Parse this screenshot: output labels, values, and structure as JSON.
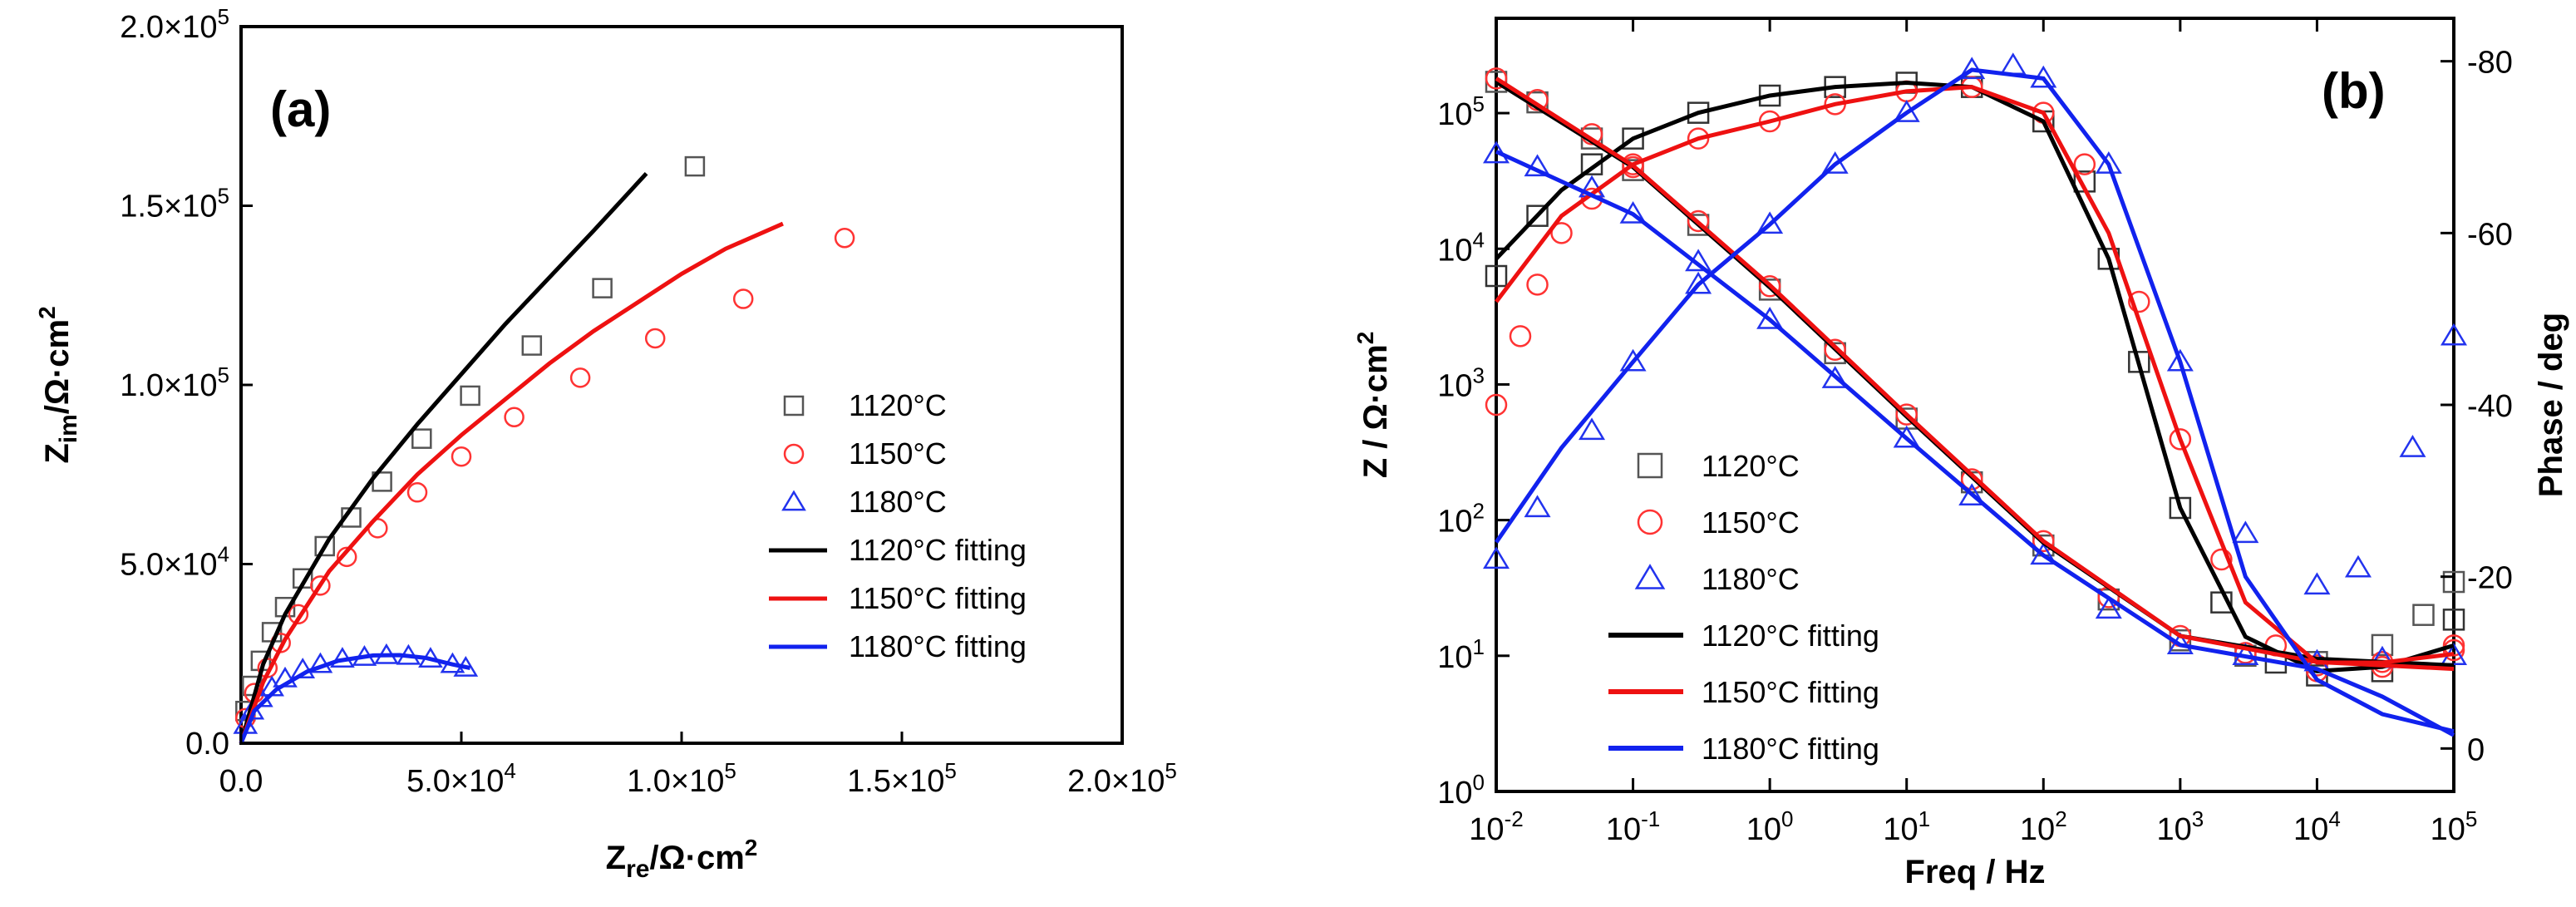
{
  "chart_data": [
    {
      "panel": "(a)",
      "type": "scatter",
      "title": "",
      "xlabel": "Zre/Ω·cm2",
      "ylabel": "Zim/Ω·cm2",
      "xlim": [
        0,
        200000
      ],
      "ylim": [
        0,
        200000
      ],
      "x_ticks": [
        {
          "value": 0,
          "label": "0.0"
        },
        {
          "value": 50000,
          "label": "5.0×10^4"
        },
        {
          "value": 100000,
          "label": "1.0×10^5"
        },
        {
          "value": 150000,
          "label": "1.5×10^5"
        },
        {
          "value": 200000,
          "label": "2.0×10^5"
        }
      ],
      "y_ticks": [
        {
          "value": 0,
          "label": "0.0"
        },
        {
          "value": 50000,
          "label": "5.0×10^4"
        },
        {
          "value": 100000,
          "label": "1.0×10^5"
        },
        {
          "value": 150000,
          "label": "1.5×10^5"
        },
        {
          "value": 200000,
          "label": "2.0×10^5"
        }
      ],
      "series": [
        {
          "name": "1120°C",
          "kind": "marker",
          "marker": "square",
          "color": "#555555",
          "x": [
            1000,
            2500,
            4500,
            7000,
            10000,
            14000,
            19000,
            25000,
            32000,
            41000,
            52000,
            66000,
            82000,
            103000
          ],
          "y": [
            9000,
            16000,
            23000,
            31000,
            38000,
            46000,
            55000,
            63000,
            73000,
            85000,
            97000,
            111000,
            127000,
            161000
          ]
        },
        {
          "name": "1150°C",
          "kind": "marker",
          "marker": "circle",
          "color": "#ff3333",
          "x": [
            1000,
            3000,
            6000,
            9000,
            13000,
            18000,
            24000,
            31000,
            40000,
            50000,
            62000,
            77000,
            94000,
            114000,
            137000
          ],
          "y": [
            7000,
            14000,
            21000,
            28000,
            36000,
            44000,
            52000,
            60000,
            70000,
            80000,
            91000,
            102000,
            113000,
            124000,
            141000
          ]
        },
        {
          "name": "1180°C",
          "kind": "marker",
          "marker": "triangle",
          "color": "#2233ee",
          "x": [
            1000,
            2500,
            4500,
            7000,
            10000,
            14000,
            18000,
            23000,
            28000,
            33000,
            38000,
            43000,
            48000,
            51000
          ],
          "y": [
            5000,
            9000,
            12500,
            15500,
            18000,
            20500,
            22000,
            23500,
            24000,
            24500,
            24300,
            23500,
            22000,
            21000
          ]
        },
        {
          "name": "1120°C fitting",
          "kind": "line",
          "color": "#000000",
          "x": [
            0,
            5000,
            10000,
            20000,
            30000,
            40000,
            50000,
            60000,
            70000,
            80000,
            92000
          ],
          "y": [
            0,
            22000,
            36000,
            57000,
            74000,
            89000,
            103000,
            117000,
            130000,
            143000,
            159000
          ]
        },
        {
          "name": "1150°C fitting",
          "kind": "line",
          "color": "#ee1111",
          "x": [
            0,
            5000,
            10000,
            20000,
            30000,
            40000,
            50000,
            60000,
            70000,
            80000,
            90000,
            100000,
            110000,
            123000
          ],
          "y": [
            0,
            17000,
            29000,
            48000,
            62000,
            75000,
            86000,
            96000,
            106000,
            115000,
            123000,
            131000,
            138000,
            145000
          ]
        },
        {
          "name": "1180°C fitting",
          "kind": "line",
          "color": "#1122ee",
          "x": [
            0,
            3000,
            8000,
            15000,
            22000,
            30000,
            36000,
            42000,
            48000,
            52000
          ],
          "y": [
            0,
            9000,
            15000,
            20000,
            23000,
            24500,
            24600,
            23800,
            22000,
            21000
          ]
        }
      ],
      "legend_entries": [
        "1120°C",
        "1150°C",
        "1180°C",
        "1120°C fitting",
        "1150°C fitting",
        "1180°C fitting"
      ],
      "legend_position": "right-middle"
    },
    {
      "panel": "(b)",
      "type": "scatter",
      "title": "",
      "xlabel": "Freq / Hz",
      "ylabel": "Z / Ω·cm2",
      "y2label": "Phase / deg",
      "xscale": "log",
      "yscale": "log",
      "xlim": [
        0.01,
        100000
      ],
      "ylim": [
        1,
        500000
      ],
      "y2lim": [
        5,
        -85
      ],
      "x_ticks": [
        {
          "value": 0.01,
          "base": "10",
          "exp": "-2"
        },
        {
          "value": 0.1,
          "base": "10",
          "exp": "-1"
        },
        {
          "value": 1,
          "base": "10",
          "exp": "0"
        },
        {
          "value": 10,
          "base": "10",
          "exp": "1"
        },
        {
          "value": 100,
          "base": "10",
          "exp": "2"
        },
        {
          "value": 1000,
          "base": "10",
          "exp": "3"
        },
        {
          "value": 10000,
          "base": "10",
          "exp": "4"
        },
        {
          "value": 100000,
          "base": "10",
          "exp": "5"
        }
      ],
      "y_ticks": [
        {
          "value": 1,
          "base": "10",
          "exp": "0"
        },
        {
          "value": 10,
          "base": "10",
          "exp": "1"
        },
        {
          "value": 100,
          "base": "10",
          "exp": "2"
        },
        {
          "value": 1000,
          "base": "10",
          "exp": "3"
        },
        {
          "value": 10000,
          "base": "10",
          "exp": "4"
        },
        {
          "value": 100000,
          "base": "10",
          "exp": "5"
        }
      ],
      "y2_ticks": [
        {
          "value": -80,
          "label": "-80"
        },
        {
          "value": -60,
          "label": "-60"
        },
        {
          "value": -40,
          "label": "-40"
        },
        {
          "value": -20,
          "label": "-20"
        },
        {
          "value": 0,
          "label": "0"
        }
      ],
      "series": [
        {
          "name": "1120°C",
          "kind": "marker",
          "marker": "square",
          "color": "#555555",
          "quantity": "modulus",
          "x": [
            0.01,
            0.02,
            0.05,
            0.1,
            0.3,
            1,
            3,
            10,
            30,
            100,
            300,
            1000,
            3000,
            10000,
            30000,
            60000,
            100000
          ],
          "y": [
            170000,
            120000,
            65000,
            38000,
            15000,
            5000,
            1700,
            560,
            190,
            65,
            26,
            13,
            10,
            9,
            12,
            20,
            35
          ]
        },
        {
          "name": "1120°C",
          "kind": "marker",
          "marker": "square",
          "color": "#333333",
          "quantity": "phase",
          "x": [
            0.01,
            0.02,
            0.05,
            0.1,
            0.3,
            1,
            3,
            10,
            30,
            100,
            200,
            300,
            500,
            1000,
            2000,
            5000,
            10000,
            30000,
            100000
          ],
          "y": [
            -55,
            -62,
            -68,
            -71,
            -74,
            -76,
            -77,
            -77.5,
            -77,
            -73,
            -66,
            -57,
            -45,
            -28,
            -17,
            -10,
            -8.5,
            -9,
            -15
          ]
        },
        {
          "name": "1150°C",
          "kind": "marker",
          "marker": "circle",
          "color": "#ff3333",
          "quantity": "modulus",
          "x": [
            0.01,
            0.02,
            0.05,
            0.1,
            0.3,
            1,
            3,
            10,
            30,
            100,
            300,
            1000,
            3000,
            10000,
            30000,
            100000
          ],
          "y": [
            180000,
            125000,
            70000,
            40000,
            16000,
            5300,
            1800,
            600,
            200,
            70,
            27,
            14,
            10.5,
            8.5,
            9,
            11
          ]
        },
        {
          "name": "1150°C",
          "kind": "marker",
          "marker": "circle",
          "color": "#ff3333",
          "quantity": "phase",
          "x": [
            0.01,
            0.015,
            0.02,
            0.03,
            0.05,
            0.1,
            0.3,
            1,
            3,
            10,
            30,
            100,
            200,
            500,
            1000,
            2000,
            5000,
            10000,
            30000,
            100000
          ],
          "y": [
            -40,
            -48,
            -54,
            -60,
            -64,
            -68,
            -71,
            -73,
            -75,
            -76.5,
            -77,
            -74,
            -68,
            -52,
            -36,
            -22,
            -12,
            -9,
            -9.5,
            -12
          ]
        },
        {
          "name": "1180°C",
          "kind": "marker",
          "marker": "triangle",
          "color": "#2233ee",
          "quantity": "modulus",
          "x": [
            0.01,
            0.02,
            0.05,
            0.1,
            0.3,
            1,
            3,
            10,
            30,
            100,
            300,
            1000,
            3000,
            10000,
            30000,
            100000
          ],
          "y": [
            50000,
            40000,
            28000,
            18000,
            8000,
            3000,
            1100,
            400,
            150,
            55,
            22,
            12,
            10,
            9,
            9.5,
            10
          ]
        },
        {
          "name": "1180°C",
          "kind": "marker",
          "marker": "triangle",
          "color": "#2233ee",
          "quantity": "phase",
          "x": [
            0.01,
            0.02,
            0.05,
            0.1,
            0.3,
            1,
            3,
            10,
            30,
            60,
            100,
            300,
            1000,
            3000,
            10000,
            20000,
            50000,
            100000
          ],
          "y": [
            -22,
            -28,
            -37,
            -45,
            -54,
            -61,
            -68,
            -74,
            -79,
            -79.5,
            -78,
            -68,
            -45,
            -25,
            -19,
            -21,
            -35,
            -48
          ]
        },
        {
          "name": "1120°C fitting",
          "kind": "line",
          "color": "#000000",
          "quantity": "modulus",
          "x": [
            0.01,
            0.1,
            1,
            10,
            100,
            1000,
            10000,
            100000
          ],
          "y": [
            170000,
            40000,
            5200,
            580,
            68,
            14,
            9.5,
            8.5
          ]
        },
        {
          "name": "1120°C fitting",
          "kind": "line",
          "color": "#000000",
          "quantity": "phase",
          "x": [
            0.01,
            0.03,
            0.1,
            0.3,
            1,
            3,
            10,
            30,
            100,
            300,
            1000,
            3000,
            10000,
            30000,
            100000
          ],
          "y": [
            -57,
            -65,
            -71,
            -74,
            -76,
            -77,
            -77.5,
            -77,
            -73,
            -57,
            -28,
            -13,
            -9,
            -9.5,
            -12
          ]
        },
        {
          "name": "1150°C fitting",
          "kind": "line",
          "color": "#ee1111",
          "quantity": "modulus",
          "x": [
            0.01,
            0.1,
            1,
            10,
            100,
            1000,
            10000,
            100000
          ],
          "y": [
            180000,
            41000,
            5400,
            600,
            70,
            14,
            9,
            8
          ]
        },
        {
          "name": "1150°C fitting",
          "kind": "line",
          "color": "#ee1111",
          "quantity": "phase",
          "x": [
            0.01,
            0.03,
            0.1,
            0.3,
            1,
            3,
            10,
            30,
            100,
            300,
            1000,
            3000,
            10000,
            30000,
            100000
          ],
          "y": [
            -52,
            -62,
            -68,
            -71,
            -73,
            -75,
            -76.5,
            -77,
            -74,
            -60,
            -36,
            -17,
            -10,
            -10,
            -11
          ]
        },
        {
          "name": "1180°C fitting",
          "kind": "line",
          "color": "#1122ee",
          "quantity": "modulus",
          "x": [
            0.01,
            0.1,
            1,
            10,
            100,
            1000,
            10000,
            30000,
            100000
          ],
          "y": [
            52000,
            18000,
            3000,
            400,
            55,
            12,
            8,
            5,
            2.6
          ]
        },
        {
          "name": "1180°C fitting",
          "kind": "line",
          "color": "#1122ee",
          "quantity": "phase",
          "x": [
            0.01,
            0.03,
            0.1,
            0.3,
            1,
            3,
            10,
            30,
            100,
            300,
            1000,
            3000,
            10000,
            30000,
            100000
          ],
          "y": [
            -24,
            -35,
            -45,
            -54,
            -61,
            -68,
            -74,
            -79,
            -78,
            -68,
            -45,
            -20,
            -8,
            -4,
            -2
          ]
        }
      ],
      "legend_entries": [
        "1120°C",
        "1150°C",
        "1180°C",
        "1120°C fitting",
        "1150°C fitting",
        "1180°C fitting"
      ],
      "legend_position": "bottom-left"
    }
  ]
}
